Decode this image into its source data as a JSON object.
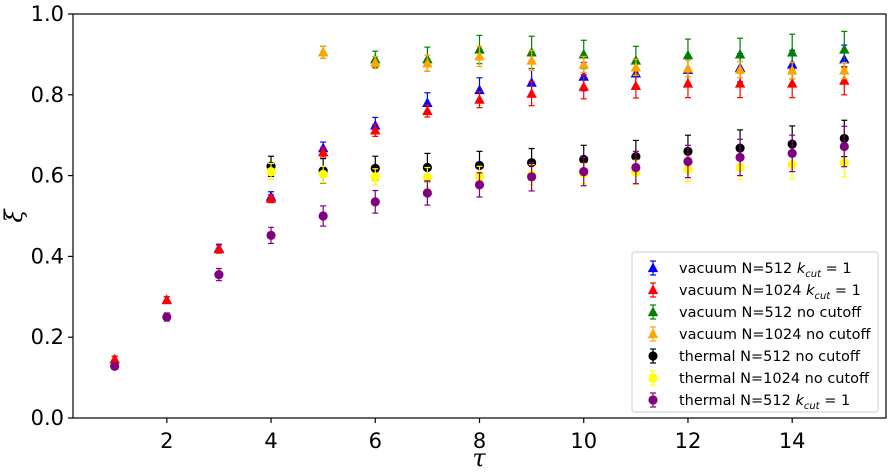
{
  "chart_data": {
    "type": "scatter",
    "xlabel": "τ",
    "ylabel": "ξ",
    "xlim": [
      0.2,
      15.8
    ],
    "ylim": [
      0.0,
      1.0
    ],
    "xticks": [
      2,
      4,
      6,
      8,
      10,
      12,
      14
    ],
    "yticks": [
      0.0,
      0.2,
      0.4,
      0.6,
      0.8,
      1.0
    ],
    "xtick_labels": [
      "2",
      "4",
      "6",
      "8",
      "10",
      "12",
      "14"
    ],
    "ytick_labels": [
      "0.0",
      "0.2",
      "0.4",
      "0.6",
      "0.8",
      "1.0"
    ],
    "grid": false,
    "legend_position": "lower-right",
    "series": [
      {
        "name": "vacuum N=512 kcut = 1",
        "legend_parts": [
          "vacuum N=512 ",
          "k",
          "cut",
          " = 1"
        ],
        "color": "#0000ff",
        "marker": "triangle",
        "x": [
          1,
          2,
          3,
          4,
          5,
          6,
          7,
          8,
          9,
          10,
          11,
          12,
          13,
          14,
          15
        ],
        "y": [
          0.145,
          0.292,
          0.42,
          0.548,
          0.668,
          0.724,
          0.78,
          0.812,
          0.83,
          0.845,
          0.853,
          0.862,
          0.867,
          0.875,
          0.888
        ],
        "err": [
          0.008,
          0.008,
          0.01,
          0.012,
          0.015,
          0.02,
          0.025,
          0.03,
          0.035,
          0.035,
          0.035,
          0.035,
          0.035,
          0.035,
          0.035
        ]
      },
      {
        "name": "vacuum N=1024 kcut = 1",
        "legend_parts": [
          "vacuum N=1024 ",
          "k",
          "cut",
          " = 1"
        ],
        "color": "#ff0000",
        "marker": "triangle",
        "x": [
          1,
          2,
          3,
          4,
          5,
          6,
          7,
          8,
          9,
          10,
          11,
          12,
          13,
          14,
          15
        ],
        "y": [
          0.145,
          0.292,
          0.418,
          0.543,
          0.658,
          0.712,
          0.76,
          0.788,
          0.803,
          0.82,
          0.822,
          0.828,
          0.828,
          0.828,
          0.835
        ],
        "err": [
          0.008,
          0.008,
          0.01,
          0.01,
          0.012,
          0.015,
          0.015,
          0.02,
          0.03,
          0.03,
          0.03,
          0.035,
          0.035,
          0.035,
          0.035
        ]
      },
      {
        "name": "vacuum N=512 no cutoff",
        "legend_parts": [
          "vacuum N=512 no cutoff"
        ],
        "color": "#008000",
        "marker": "triangle",
        "x": [
          5,
          6,
          7,
          8,
          9,
          10,
          11,
          12,
          13,
          14,
          15
        ],
        "y": [
          0.905,
          0.888,
          0.888,
          0.912,
          0.905,
          0.9,
          0.885,
          0.898,
          0.9,
          0.905,
          0.912
        ],
        "err": [
          0.015,
          0.02,
          0.03,
          0.035,
          0.04,
          0.035,
          0.035,
          0.04,
          0.04,
          0.045,
          0.045
        ]
      },
      {
        "name": "vacuum N=1024 no cutoff",
        "legend_parts": [
          "vacuum N=1024 no cutoff"
        ],
        "color": "#ffa500",
        "marker": "triangle",
        "x": [
          5,
          6,
          7,
          8,
          9,
          10,
          11,
          12,
          13,
          14,
          15
        ],
        "y": [
          0.905,
          0.88,
          0.878,
          0.895,
          0.885,
          0.875,
          0.868,
          0.865,
          0.862,
          0.86,
          0.86
        ],
        "err": [
          0.015,
          0.015,
          0.02,
          0.025,
          0.025,
          0.02,
          0.02,
          0.02,
          0.02,
          0.02,
          0.02
        ]
      },
      {
        "name": "thermal N=512 no cutoff",
        "legend_parts": [
          "thermal N=512 no cutoff"
        ],
        "color": "#000000",
        "marker": "circle",
        "x": [
          4,
          5,
          6,
          7,
          8,
          9,
          10,
          11,
          12,
          13,
          14,
          15
        ],
        "y": [
          0.623,
          0.612,
          0.618,
          0.62,
          0.625,
          0.632,
          0.64,
          0.647,
          0.66,
          0.668,
          0.678,
          0.692
        ],
        "err": [
          0.025,
          0.03,
          0.03,
          0.035,
          0.035,
          0.035,
          0.035,
          0.04,
          0.04,
          0.045,
          0.045,
          0.045
        ]
      },
      {
        "name": "thermal N=1024 no cutoff",
        "legend_parts": [
          "thermal N=1024 no cutoff"
        ],
        "color": "#ffff00",
        "marker": "circle",
        "x": [
          4,
          5,
          6,
          7,
          8,
          9,
          10,
          11,
          12,
          13,
          14,
          15
        ],
        "y": [
          0.61,
          0.603,
          0.597,
          0.595,
          0.598,
          0.602,
          0.605,
          0.608,
          0.615,
          0.62,
          0.627,
          0.632
        ],
        "err": [
          0.02,
          0.02,
          0.02,
          0.025,
          0.025,
          0.025,
          0.025,
          0.03,
          0.03,
          0.03,
          0.035,
          0.035
        ]
      },
      {
        "name": "thermal N=512 kcut = 1",
        "legend_parts": [
          "thermal N=512 ",
          "k",
          "cut",
          " = 1"
        ],
        "color": "#800080",
        "marker": "circle",
        "x": [
          1,
          2,
          3,
          4,
          5,
          6,
          7,
          8,
          9,
          10,
          11,
          12,
          13,
          14,
          15
        ],
        "y": [
          0.128,
          0.25,
          0.355,
          0.452,
          0.5,
          0.535,
          0.557,
          0.577,
          0.597,
          0.61,
          0.62,
          0.635,
          0.645,
          0.655,
          0.672
        ],
        "err": [
          0.008,
          0.01,
          0.015,
          0.02,
          0.025,
          0.028,
          0.03,
          0.03,
          0.035,
          0.035,
          0.04,
          0.04,
          0.045,
          0.045,
          0.05
        ]
      }
    ]
  }
}
